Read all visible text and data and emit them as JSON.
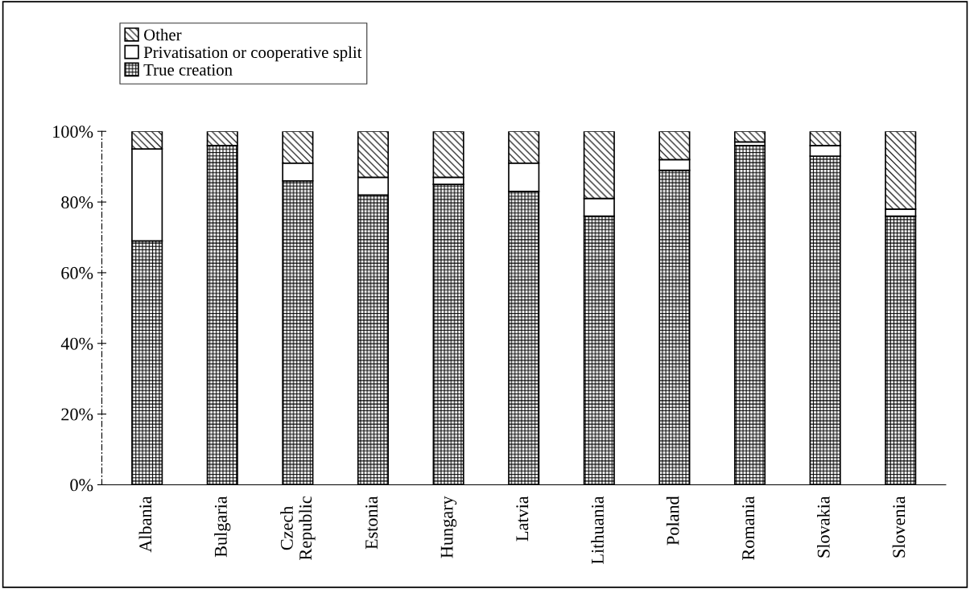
{
  "chart_data": {
    "type": "bar",
    "stacked": true,
    "categories": [
      "Albania",
      "Bulgaria",
      "Czech Republic",
      "Estonia",
      "Hungary",
      "Latvia",
      "Lithuania",
      "Poland",
      "Romania",
      "Slovakia",
      "Slovenia"
    ],
    "series": [
      {
        "name": "True creation",
        "color": "#000000",
        "values": [
          69,
          96,
          86,
          82,
          85,
          83,
          76,
          89,
          96,
          93,
          76
        ]
      },
      {
        "name": "Privatisation or cooperative split",
        "color": "#ffffff",
        "values": [
          26,
          null,
          5,
          5,
          2,
          8,
          5,
          3,
          1,
          3,
          2
        ]
      },
      {
        "name": "Other",
        "color": "#000000",
        "values": [
          5,
          4,
          9,
          13,
          13,
          9,
          19,
          8,
          3,
          4,
          22
        ]
      }
    ],
    "ylim": [
      0,
      100
    ],
    "yticks": [
      {
        "value": 0,
        "label": "0%"
      },
      {
        "value": 20,
        "label": "20%"
      },
      {
        "value": 40,
        "label": "40%"
      },
      {
        "value": 60,
        "label": "60%"
      },
      {
        "value": 80,
        "label": "80%"
      },
      {
        "value": 100,
        "label": "100%"
      }
    ],
    "grid": false,
    "legend": "top left"
  }
}
